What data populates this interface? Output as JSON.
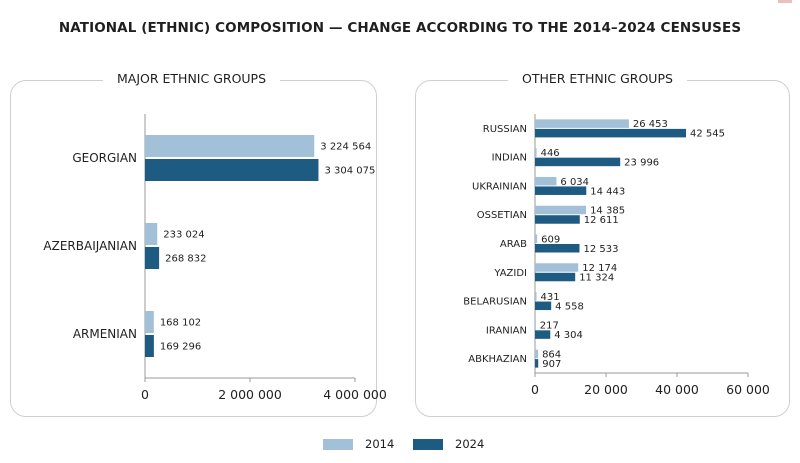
{
  "title": "NATIONAL (ETHNIC) COMPOSITION — CHANGE ACCORDING TO THE 2014–2024 CENSUSES",
  "colors": {
    "y2014": "#a3c0d9",
    "y2024": "#1d5b82",
    "axis": "#9a9a9a",
    "text": "#1f1f1f"
  },
  "legend": [
    {
      "label": "2014",
      "color": "#a3c0d9"
    },
    {
      "label": "2024",
      "color": "#1d5b82"
    }
  ],
  "chart_data": [
    {
      "type": "bar",
      "orientation": "horizontal",
      "title": "MAJOR ETHNIC GROUPS",
      "categories": [
        "GEORGIAN",
        "AZERBAIJANIAN",
        "ARMENIAN"
      ],
      "series": [
        {
          "name": "2014",
          "values": [
            3224564,
            233024,
            168102
          ]
        },
        {
          "name": "2024",
          "values": [
            3304075,
            268832,
            169296
          ]
        }
      ],
      "value_labels": [
        [
          "3 224 564",
          "233 024",
          "168 102"
        ],
        [
          "3 304 075",
          "268 832",
          "169 296"
        ]
      ],
      "xlim": [
        0,
        4000000
      ],
      "xticks": [
        0,
        2000000,
        4000000
      ],
      "xtick_labels": [
        "0",
        "2 000 000",
        "4 000 000"
      ],
      "grid": false
    },
    {
      "type": "bar",
      "orientation": "horizontal",
      "title": "OTHER ETHNIC GROUPS",
      "categories": [
        "RUSSIAN",
        "INDIAN",
        "UKRAINIAN",
        "OSSETIAN",
        "ARAB",
        "YAZIDI",
        "BELARUSIAN",
        "IRANIAN",
        "ABKHAZIAN"
      ],
      "series": [
        {
          "name": "2014",
          "values": [
            26453,
            446,
            6034,
            14385,
            609,
            12174,
            431,
            217,
            864
          ]
        },
        {
          "name": "2024",
          "values": [
            42545,
            23996,
            14443,
            12611,
            12533,
            11324,
            4558,
            4304,
            907
          ]
        }
      ],
      "value_labels": [
        [
          "26 453",
          "446",
          "6 034",
          "14 385",
          "609",
          "12 174",
          "431",
          "217",
          "864"
        ],
        [
          "42 545",
          "23 996",
          "14 443",
          "12 611",
          "12 533",
          "11 324",
          "4 558",
          "4 304",
          "907"
        ]
      ],
      "xlim": [
        0,
        60000
      ],
      "xticks": [
        0,
        20000,
        40000,
        60000
      ],
      "xtick_labels": [
        "0",
        "20 000",
        "40 000",
        "60 000"
      ],
      "grid": false
    }
  ]
}
